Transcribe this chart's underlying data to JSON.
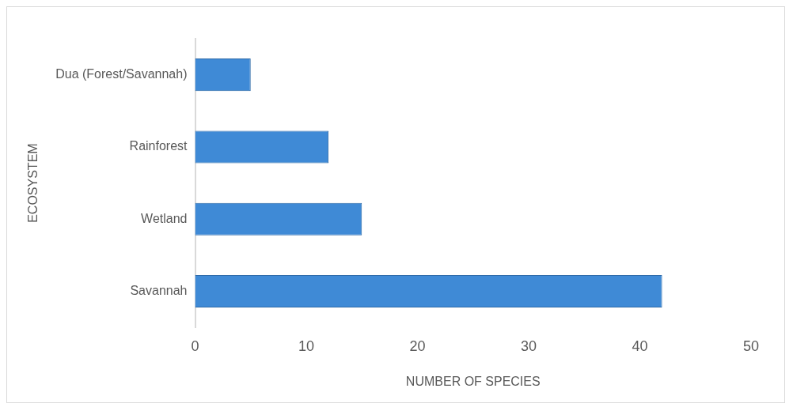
{
  "chart_data": {
    "type": "bar",
    "orientation": "horizontal",
    "categories": [
      "Dua (Forest/Savannah)",
      "Rainforest",
      "Wetland",
      "Savannah"
    ],
    "values": [
      5,
      12,
      15,
      42
    ],
    "color": "#3f8ad6",
    "xlabel": "NUMBER OF SPECIES",
    "ylabel": "ECOSYSTEM",
    "xlim": [
      0,
      50
    ],
    "xticks": [
      0,
      10,
      20,
      30,
      40,
      50
    ],
    "grid": false,
    "legend": false
  }
}
